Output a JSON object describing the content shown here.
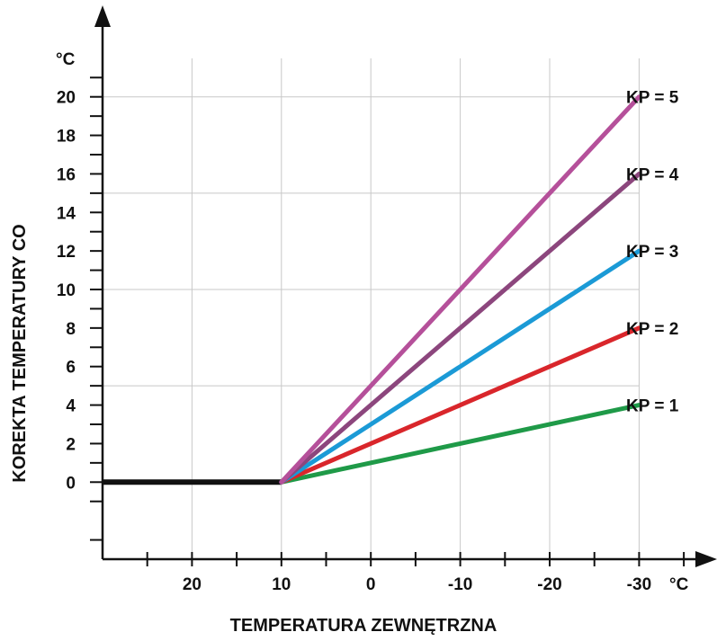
{
  "chart_data": {
    "type": "line",
    "title": "",
    "xlabel": "TEMPERATURA ZEWNĘTRZNA",
    "ylabel": "KOREKTA TEMPERATURY CO",
    "x_unit": "°C",
    "y_unit": "°C",
    "x_reversed": true,
    "xlim": [
      30,
      -37
    ],
    "ylim": [
      -4,
      24
    ],
    "x_ticks": [
      20,
      10,
      0,
      -10,
      -20,
      -30
    ],
    "x_tick_labels": [
      "20",
      "10",
      "0",
      "-10",
      "-20",
      "-30"
    ],
    "y_ticks": [
      0,
      2,
      4,
      6,
      8,
      10,
      12,
      14,
      16,
      18,
      20
    ],
    "y_tick_labels": [
      "0",
      "2",
      "4",
      "6",
      "8",
      "10",
      "12",
      "14",
      "16",
      "18",
      "20"
    ],
    "grid": true,
    "baseline": {
      "x": [
        30,
        10
      ],
      "y": [
        0,
        0
      ],
      "color": "#111111"
    },
    "series": [
      {
        "name": "KP  = 1",
        "x": [
          10,
          -30
        ],
        "y": [
          0,
          4
        ],
        "color": "#1f9a48"
      },
      {
        "name": "KP  = 2",
        "x": [
          10,
          -30
        ],
        "y": [
          0,
          8
        ],
        "color": "#d9262b"
      },
      {
        "name": "KP  = 3",
        "x": [
          10,
          -30
        ],
        "y": [
          0,
          12
        ],
        "color": "#1b9ad6"
      },
      {
        "name": "KP  = 4",
        "x": [
          10,
          -30
        ],
        "y": [
          0,
          16
        ],
        "color": "#8c467d"
      },
      {
        "name": "KP  = 5",
        "x": [
          10,
          -30
        ],
        "y": [
          0,
          20
        ],
        "color": "#b5509a"
      }
    ],
    "legend": "right, next to line ends"
  }
}
